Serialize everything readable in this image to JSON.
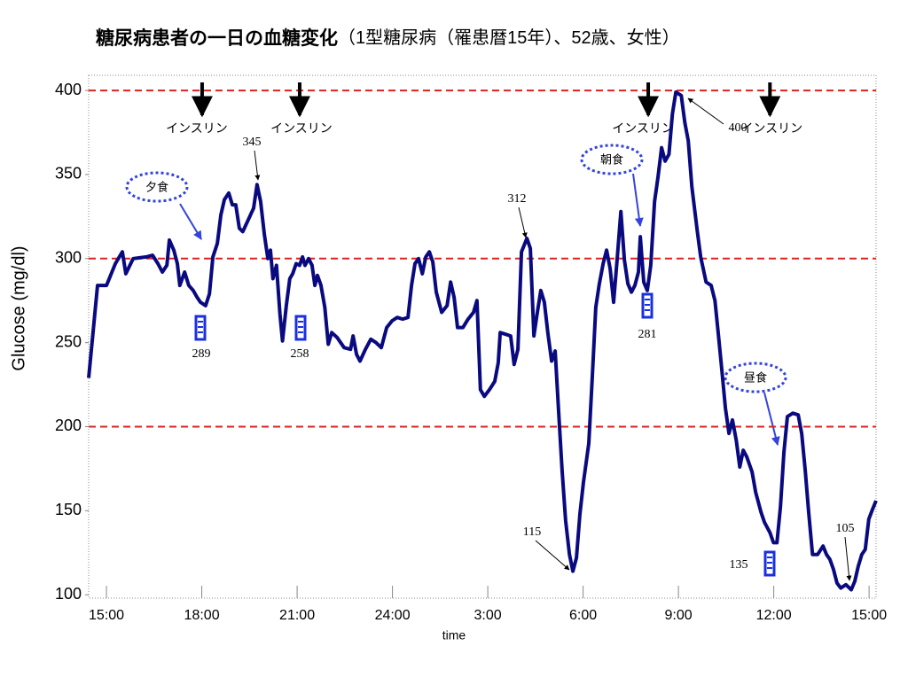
{
  "chart_data": {
    "type": "line",
    "title": "糖尿病患者の一日の血糖変化",
    "subtitle": "（1型糖尿病（罹患暦15年）、52歳、女性）",
    "y_label": "Glucose (mg/dl)",
    "x_label": "time",
    "color": "#0a0a80",
    "xlim": [
      -0.56,
      24.22
    ],
    "ylim": [
      98,
      409
    ],
    "xticks": [
      {
        "value": 0,
        "label": "15:00"
      },
      {
        "value": 3,
        "label": "18:00"
      },
      {
        "value": 6,
        "label": "21:00"
      },
      {
        "value": 9,
        "label": "24:00"
      },
      {
        "value": 12,
        "label": "3:00"
      },
      {
        "value": 15,
        "label": "6:00"
      },
      {
        "value": 18,
        "label": "9:00"
      },
      {
        "value": 21,
        "label": "12:00"
      },
      {
        "value": 24,
        "label": "15:00"
      }
    ],
    "yticks": [
      100,
      150,
      200,
      250,
      300,
      350,
      400
    ],
    "ref_lines": [
      200,
      300,
      400
    ],
    "x": [
      -0.56,
      -0.28,
      0,
      0.28,
      0.5,
      0.61,
      0.84,
      1.26,
      1.45,
      1.62,
      1.76,
      1.9,
      1.98,
      2.12,
      2.23,
      2.31,
      2.46,
      2.59,
      2.73,
      2.85,
      2.96,
      3.12,
      3.24,
      3.35,
      3.49,
      3.6,
      3.71,
      3.85,
      3.96,
      4.07,
      4.18,
      4.29,
      4.46,
      4.63,
      4.74,
      4.85,
      4.97,
      5.08,
      5.16,
      5.24,
      5.35,
      5.46,
      5.54,
      5.66,
      5.77,
      5.86,
      5.97,
      6.08,
      6.17,
      6.25,
      6.36,
      6.47,
      6.56,
      6.64,
      6.75,
      6.87,
      6.98,
      7.09,
      7.26,
      7.48,
      7.68,
      7.76,
      7.87,
      7.98,
      8.15,
      8.32,
      8.48,
      8.65,
      8.82,
      8.99,
      9.15,
      9.32,
      9.49,
      9.6,
      9.71,
      9.82,
      9.94,
      10.05,
      10.16,
      10.27,
      10.38,
      10.55,
      10.72,
      10.83,
      10.94,
      11.05,
      11.22,
      11.38,
      11.55,
      11.66,
      11.77,
      11.89,
      12.05,
      12.22,
      12.33,
      12.39,
      12.56,
      12.72,
      12.83,
      12.95,
      13.06,
      13.23,
      13.34,
      13.45,
      13.56,
      13.67,
      13.78,
      13.89,
      14.01,
      14.12,
      14.23,
      14.34,
      14.45,
      14.57,
      14.68,
      14.79,
      14.9,
      15.01,
      15.18,
      15.29,
      15.4,
      15.51,
      15.63,
      15.74,
      15.85,
      15.96,
      16.07,
      16.19,
      16.3,
      16.41,
      16.52,
      16.63,
      16.74,
      16.8,
      16.91,
      17.02,
      17.13,
      17.25,
      17.36,
      17.47,
      17.58,
      17.7,
      17.81,
      17.92,
      18.09,
      18.2,
      18.31,
      18.42,
      18.59,
      18.7,
      18.87,
      19.03,
      19.15,
      19.26,
      19.37,
      19.48,
      19.59,
      19.7,
      19.82,
      19.93,
      20.04,
      20.15,
      20.32,
      20.43,
      20.6,
      20.71,
      20.88,
      20.99,
      21.1,
      21.21,
      21.32,
      21.43,
      21.6,
      21.77,
      21.88,
      21.99,
      22.1,
      22.22,
      22.38,
      22.55,
      22.66,
      22.77,
      22.88,
      22.99,
      23.11,
      23.27,
      23.44,
      23.55,
      23.66,
      23.77,
      23.88,
      23.99,
      24.11,
      24.22
    ],
    "values": [
      229,
      284,
      284,
      297,
      304,
      291,
      300,
      301,
      302,
      297,
      292,
      296,
      311,
      305,
      297,
      284,
      292,
      284,
      281,
      277,
      274,
      272,
      279,
      301,
      309,
      326,
      335,
      339,
      332,
      332,
      318,
      316,
      323,
      330,
      344,
      334,
      314,
      300,
      305,
      288,
      296,
      267,
      251,
      272,
      288,
      291,
      297,
      296,
      301,
      296,
      300,
      296,
      284,
      290,
      284,
      271,
      249,
      256,
      253,
      247,
      246,
      254,
      243,
      239,
      246,
      252,
      250,
      247,
      259,
      263,
      265,
      264,
      265,
      284,
      297,
      300,
      291,
      301,
      304,
      298,
      280,
      268,
      272,
      286,
      277,
      259,
      259,
      264,
      268,
      275,
      222,
      218,
      222,
      227,
      238,
      256,
      255,
      254,
      237,
      246,
      304,
      312,
      306,
      254,
      268,
      281,
      274,
      256,
      239,
      245,
      209,
      174,
      144,
      124,
      114,
      122,
      148,
      167,
      190,
      230,
      271,
      285,
      297,
      305,
      294,
      274,
      299,
      328,
      299,
      285,
      280,
      284,
      292,
      313,
      286,
      281,
      296,
      334,
      349,
      366,
      358,
      362,
      386,
      399,
      397,
      381,
      370,
      343,
      317,
      301,
      286,
      284,
      275,
      254,
      233,
      211,
      196,
      204,
      192,
      176,
      186,
      182,
      173,
      161,
      149,
      143,
      137,
      131,
      131,
      152,
      185,
      206,
      208,
      207,
      196,
      174,
      149,
      124,
      124,
      129,
      124,
      121,
      115,
      107,
      104,
      106,
      103,
      108,
      117,
      124,
      127,
      145,
      151,
      156
    ],
    "insulin_label": "インスリン",
    "insulin_x": [
      3.01,
      6.08,
      17.05,
      20.88
    ],
    "meals": [
      "夕食",
      "朝食",
      "昼食"
    ],
    "peak_labels": [
      345,
      312,
      115,
      400,
      105
    ],
    "readings": [
      289,
      258,
      281,
      135
    ]
  }
}
